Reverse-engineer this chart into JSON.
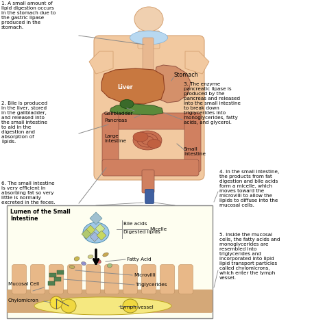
{
  "bg_color": "#ffffff",
  "fig_width": 4.74,
  "fig_height": 4.69,
  "dpi": 100,
  "ann1": "1. A small amount of\nlipid digestion occurs\nin the stomach due to\nthe gastric lipase\nproduced in the\nstomach.",
  "ann2": "2. Bile is produced\nin the liver, stored\nin the gallbladder,\nand released into\nthe small intestine\nto aid in the\ndigestion and\nabsorption of\nlipids.",
  "ann3": "3. The enzyme\npancreatic lipase is\nproduced by the\npancreas and released\ninto the small intestine\nto break down\ntriglycerides into\nmonoglycerides, fatty\nacids, and glycerol.",
  "ann4": "4. In the small intestine,\nthe products from fat\ndigestion and bile acids\nform a micelle, which\nmoves toward the\nmicrovilli to allow the\nlipids to diffuse into the\nmucosal cells.",
  "ann5": "5. Inside the mucosal\ncells, the fatty acids and\nmonoglycerides are\nresembled into\ntriglycerides and\nincorporated into lipid\nlipid transport particles\ncalled chylomicrons,\nwhich enter the lymph\nvessel.",
  "ann6": "6. The small intestine\nis very efficient in\nabsorbing fat so very\nlittle is normally\nexcreted in the feces.",
  "body_skin": "#f2c9a0",
  "body_outline": "#d4a070",
  "liver_color": "#c87840",
  "stomach_color": "#d4906a",
  "large_int_color": "#d08060",
  "small_int_color": "#c87050",
  "pancreas_color": "#5a8a3a",
  "gallbladder_color": "#3a6a2a",
  "bile_duct_color": "#6aaa3a",
  "inset_bg": "#fefef0",
  "inset_border": "#888888",
  "mucosal_color": "#e8b888",
  "mucosal_edge": "#c09060",
  "lymph_color": "#f5e880",
  "lymph_edge": "#c0a820",
  "micelle_color": "#a0c8e8",
  "micelle_edge": "#5090b0",
  "arrow_color": "#000000",
  "line_color": "#888888",
  "text_color": "#000000",
  "font_size": 5.2,
  "label_font_size": 5.8
}
